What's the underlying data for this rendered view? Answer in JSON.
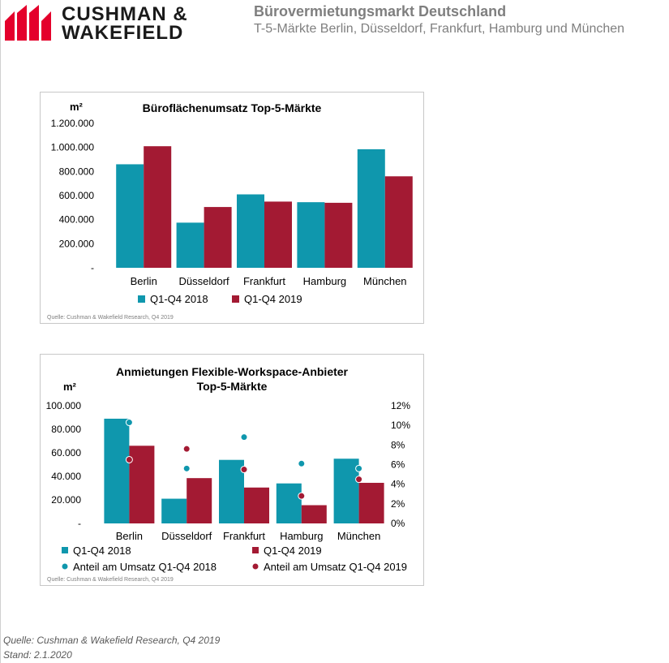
{
  "header": {
    "brand_line1": "CUSHMAN &",
    "brand_line2": "WAKEFIELD",
    "title": "Bürovermietungsmarkt Deutschland",
    "subtitle": "T-5-Märkte Berlin, Düsseldorf, Frankfurt, Hamburg und München"
  },
  "colors": {
    "teal": "#0f97ad",
    "crimson": "#a31a33",
    "brand_red": "#e4002b"
  },
  "chart_data": [
    {
      "type": "bar",
      "title": "Büroflächenumsatz Top-5-Märkte",
      "unit_label": "m²",
      "categories": [
        "Berlin",
        "Düsseldorf",
        "Frankfurt",
        "Hamburg",
        "München"
      ],
      "series": [
        {
          "name": "Q1-Q4 2018",
          "values": [
            860000,
            375000,
            610000,
            545000,
            985000
          ]
        },
        {
          "name": "Q1-Q4 2019",
          "values": [
            1010000,
            505000,
            550000,
            540000,
            760000
          ]
        }
      ],
      "ylim": [
        0,
        1200000
      ],
      "yticks": [
        "-",
        "200.000",
        "400.000",
        "600.000",
        "800.000",
        "1.000.000",
        "1.200.000"
      ],
      "legend": "bottom",
      "source": "Quelle: Cushman & Wakefield Research, Q4 2019"
    },
    {
      "type": "bar",
      "title_line1": "Anmietungen Flexible-Workspace-Anbieter",
      "title_line2": "Top-5-Märkte",
      "unit_label": "m²",
      "categories": [
        "Berlin",
        "Düsseldorf",
        "Frankfurt",
        "Hamburg",
        "München"
      ],
      "series": [
        {
          "name": "Q1-Q4 2018",
          "values": [
            89000,
            21000,
            54000,
            34000,
            55000
          ]
        },
        {
          "name": "Q1-Q4 2019",
          "values": [
            66000,
            38500,
            30500,
            15500,
            34500
          ]
        }
      ],
      "share_series": [
        {
          "name": "Anteil am Umsatz Q1-Q4 2018",
          "values": [
            10.3,
            5.6,
            8.8,
            6.1,
            5.6
          ]
        },
        {
          "name": "Anteil am Umsatz Q1-Q4 2019",
          "values": [
            6.5,
            7.6,
            5.5,
            2.8,
            4.5
          ]
        }
      ],
      "ylim": [
        0,
        100000
      ],
      "y2lim": [
        0,
        12
      ],
      "yticks": [
        "-",
        "20.000",
        "40.000",
        "60.000",
        "80.000",
        "100.000"
      ],
      "y2ticks": [
        "0%",
        "2%",
        "4%",
        "6%",
        "8%",
        "10%",
        "12%"
      ],
      "legend": "bottom",
      "source": "Quelle: Cushman & Wakefield Research, Q4 2019"
    }
  ],
  "footer": {
    "source": "Quelle: Cushman & Wakefield Research, Q4 2019",
    "date": "Stand: 2.1.2020"
  }
}
